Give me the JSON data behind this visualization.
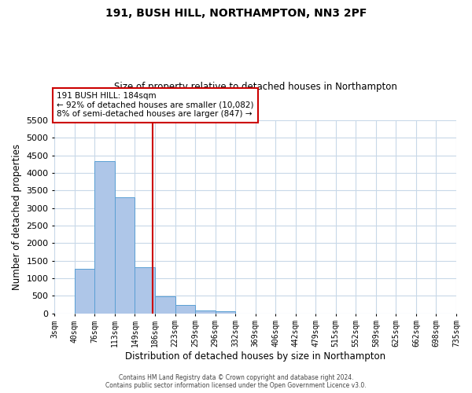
{
  "title": "191, BUSH HILL, NORTHAMPTON, NN3 2PF",
  "subtitle": "Size of property relative to detached houses in Northampton",
  "xlabel": "Distribution of detached houses by size in Northampton",
  "ylabel": "Number of detached properties",
  "bin_labels": [
    "3sqm",
    "40sqm",
    "76sqm",
    "113sqm",
    "149sqm",
    "186sqm",
    "223sqm",
    "259sqm",
    "296sqm",
    "332sqm",
    "369sqm",
    "406sqm",
    "442sqm",
    "479sqm",
    "515sqm",
    "552sqm",
    "589sqm",
    "625sqm",
    "662sqm",
    "698sqm",
    "735sqm"
  ],
  "bar_values": [
    0,
    1270,
    4330,
    3300,
    1300,
    490,
    240,
    80,
    50,
    0,
    0,
    0,
    0,
    0,
    0,
    0,
    0,
    0,
    0,
    0
  ],
  "bar_color": "#aec6e8",
  "bar_edge_color": "#5a9fd4",
  "property_line_x": 184,
  "x_min": 3,
  "x_max": 735,
  "bin_width": 37,
  "ylim": [
    0,
    5500
  ],
  "yticks": [
    0,
    500,
    1000,
    1500,
    2000,
    2500,
    3000,
    3500,
    4000,
    4500,
    5000,
    5500
  ],
  "annotation_title": "191 BUSH HILL: 184sqm",
  "annotation_line1": "← 92% of detached houses are smaller (10,082)",
  "annotation_line2": "8% of semi-detached houses are larger (847) →",
  "annotation_box_color": "#ffffff",
  "annotation_box_edge_color": "#cc0000",
  "vline_color": "#cc0000",
  "footer_line1": "Contains HM Land Registry data © Crown copyright and database right 2024.",
  "footer_line2": "Contains public sector information licensed under the Open Government Licence v3.0.",
  "background_color": "#ffffff",
  "grid_color": "#c8d8e8"
}
